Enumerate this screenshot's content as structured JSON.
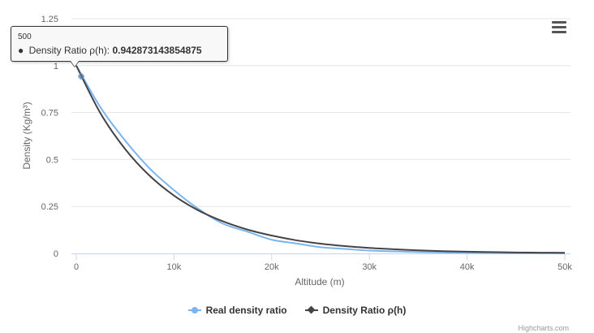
{
  "chart_data": {
    "type": "line",
    "xlabel": "Altitude (m)",
    "ylabel": "Density (Kg/m³)",
    "xlim": [
      0,
      50000
    ],
    "ylim": [
      0,
      1.25
    ],
    "x_ticks": [
      "0",
      "10k",
      "20k",
      "30k",
      "40k",
      "50k"
    ],
    "y_ticks": [
      "0",
      "0.25",
      "0.5",
      "0.75",
      "1",
      "1.25"
    ],
    "x_tick_values": [
      0,
      10000,
      20000,
      30000,
      40000,
      50000
    ],
    "y_tick_values": [
      0,
      0.25,
      0.5,
      0.75,
      1,
      1.25
    ],
    "grid": "horizontal",
    "legend_position": "bottom",
    "x": [
      0,
      2500,
      5000,
      7500,
      10000,
      12500,
      15000,
      17500,
      20000,
      22500,
      25000,
      27500,
      30000,
      32500,
      35000,
      37500,
      40000,
      42500,
      45000,
      47500,
      50000
    ],
    "series": [
      {
        "name": "Real density ratio",
        "color": "#7cb5ec",
        "values": [
          1.0,
          0.776,
          0.601,
          0.453,
          0.337,
          0.237,
          0.159,
          0.116,
          0.073,
          0.053,
          0.033,
          0.024,
          0.015,
          0.011,
          0.007,
          0.005,
          0.003,
          0.002,
          0.0015,
          0.001,
          0.0008
        ]
      },
      {
        "name": "Density Ratio ρ(h)",
        "color": "#434348",
        "values": [
          1.0,
          0.744,
          0.556,
          0.414,
          0.308,
          0.229,
          0.171,
          0.127,
          0.095,
          0.07,
          0.052,
          0.039,
          0.029,
          0.022,
          0.016,
          0.012,
          0.009,
          0.007,
          0.005,
          0.004,
          0.003
        ]
      }
    ],
    "tooltip": {
      "x": "500",
      "series": "Density Ratio ρ(h)",
      "label": "Density Ratio ρ(h):",
      "value": "0.942873143854875",
      "point_x": 500,
      "point_y": 0.942873143854875
    }
  },
  "menu_icon": "hamburger-menu-icon",
  "credits": "Highcharts.com"
}
